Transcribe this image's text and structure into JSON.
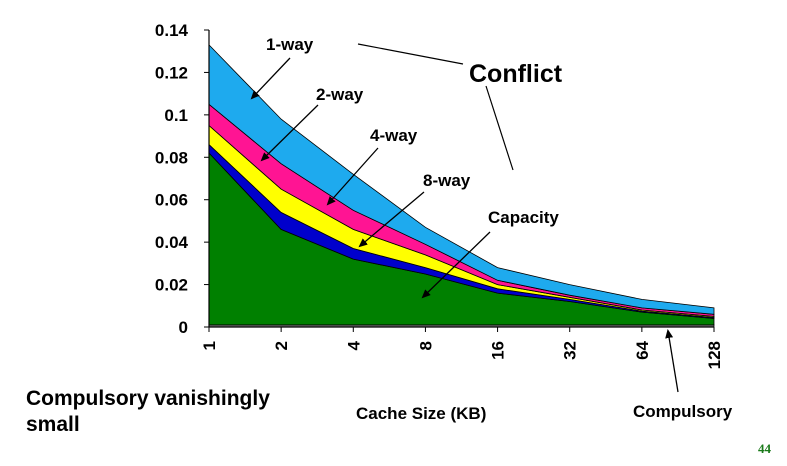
{
  "chart_data": {
    "type": "area",
    "stacked": true,
    "xlabel": "Cache Size (KB)",
    "categories": [
      "1",
      "2",
      "4",
      "8",
      "16",
      "32",
      "64",
      "128"
    ],
    "ylim": [
      0,
      0.14
    ],
    "yticks": [
      "0",
      "0.02",
      "0.04",
      "0.06",
      "0.08",
      "0.1",
      "0.12",
      "0.14"
    ],
    "series": [
      {
        "name": "Compulsory",
        "color": "#7a7a7a",
        "values": [
          0.001,
          0.001,
          0.001,
          0.001,
          0.001,
          0.001,
          0.001,
          0.001
        ]
      },
      {
        "name": "Capacity",
        "color": "#008000",
        "values": [
          0.081,
          0.045,
          0.031,
          0.024,
          0.015,
          0.011,
          0.006,
          0.003
        ]
      },
      {
        "name": "8-way",
        "color": "#0000cc",
        "values": [
          0.004,
          0.008,
          0.005,
          0.003,
          0.002,
          0.001,
          0.0005,
          0.0005
        ]
      },
      {
        "name": "4-way",
        "color": "#ffff00",
        "values": [
          0.009,
          0.011,
          0.009,
          0.006,
          0.002,
          0.001,
          0.0005,
          0.0005
        ]
      },
      {
        "name": "2-way",
        "color": "#ff1493",
        "values": [
          0.01,
          0.012,
          0.009,
          0.005,
          0.002,
          0.001,
          0.001,
          0.001
        ]
      },
      {
        "name": "1-way",
        "color": "#1eaaee",
        "values": [
          0.028,
          0.021,
          0.017,
          0.008,
          0.006,
          0.005,
          0.004,
          0.003
        ]
      }
    ],
    "annotations": [
      "1-way",
      "2-way",
      "4-way",
      "8-way",
      "Conflict",
      "Capacity",
      "Compulsory"
    ],
    "grid": false,
    "legend": "none"
  },
  "footer": {
    "note_line1": "Compulsory vanishingly",
    "note_line2": "small",
    "slide_number": "44"
  }
}
